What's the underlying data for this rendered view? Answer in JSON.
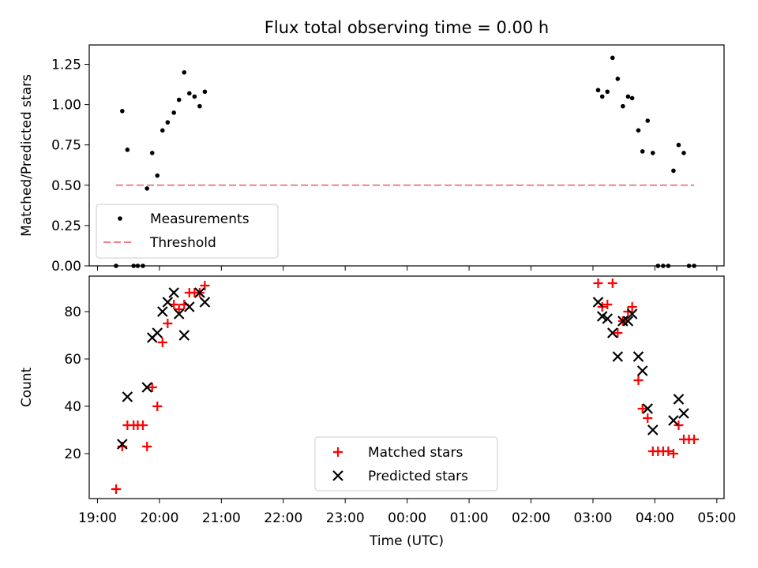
{
  "chart_data": [
    {
      "type": "scatter",
      "title": "Flux total observing time = 0.00 h",
      "ylabel": "Matched/Predicted stars",
      "ylim": [
        0,
        1.37
      ],
      "yticks": [
        0.0,
        0.25,
        0.5,
        0.75,
        1.0,
        1.25
      ],
      "ytick_labels": [
        "0.00",
        "0.25",
        "0.50",
        "0.75",
        "1.00",
        "1.25"
      ],
      "legend_position": "lower-left",
      "series": [
        {
          "name": "Measurements",
          "marker": "dot",
          "color": "#000000",
          "points": [
            [
              "19:18",
              0.0
            ],
            [
              "19:24",
              0.96
            ],
            [
              "19:29",
              0.72
            ],
            [
              "19:35",
              0.0
            ],
            [
              "19:39",
              0.0
            ],
            [
              "19:44",
              0.0
            ],
            [
              "19:48",
              0.48
            ],
            [
              "19:53",
              0.7
            ],
            [
              "19:58",
              0.56
            ],
            [
              "20:03",
              0.84
            ],
            [
              "20:08",
              0.89
            ],
            [
              "20:14",
              0.95
            ],
            [
              "20:19",
              1.03
            ],
            [
              "20:24",
              1.2
            ],
            [
              "20:29",
              1.07
            ],
            [
              "20:34",
              1.05
            ],
            [
              "20:39",
              0.99
            ],
            [
              "20:44",
              1.08
            ],
            [
              "03:05",
              1.09
            ],
            [
              "03:09",
              1.05
            ],
            [
              "03:14",
              1.08
            ],
            [
              "03:19",
              1.29
            ],
            [
              "03:24",
              1.16
            ],
            [
              "03:29",
              0.99
            ],
            [
              "03:34",
              1.05
            ],
            [
              "03:38",
              1.04
            ],
            [
              "03:44",
              0.84
            ],
            [
              "03:48",
              0.71
            ],
            [
              "03:53",
              0.9
            ],
            [
              "03:58",
              0.7
            ],
            [
              "04:03",
              0.0
            ],
            [
              "04:08",
              0.0
            ],
            [
              "04:13",
              0.0
            ],
            [
              "04:18",
              0.59
            ],
            [
              "04:23",
              0.75
            ],
            [
              "04:28",
              0.7
            ],
            [
              "04:33",
              0.0
            ],
            [
              "04:38",
              0.0
            ]
          ]
        },
        {
          "name": "Threshold",
          "marker": "dashed-line",
          "color": "#f08080",
          "points": [
            [
              "19:18",
              0.5
            ],
            [
              "04:38",
              0.5
            ]
          ]
        }
      ]
    },
    {
      "type": "scatter",
      "xlabel": "Time (UTC)",
      "ylabel": "Count",
      "ylim": [
        1,
        95
      ],
      "yticks": [
        20,
        40,
        60,
        80
      ],
      "xlim": [
        "18:52",
        "05:07"
      ],
      "xticks": [
        "19:00",
        "20:00",
        "21:00",
        "22:00",
        "23:00",
        "00:00",
        "01:00",
        "02:00",
        "03:00",
        "04:00",
        "05:00"
      ],
      "legend_position": "lower-center",
      "series": [
        {
          "name": "Matched stars",
          "marker": "plus",
          "color": "#ff0000",
          "points": [
            [
              "19:18",
              5
            ],
            [
              "19:24",
              23
            ],
            [
              "19:29",
              32
            ],
            [
              "19:35",
              32
            ],
            [
              "19:39",
              32
            ],
            [
              "19:44",
              32
            ],
            [
              "19:48",
              23
            ],
            [
              "19:53",
              48
            ],
            [
              "19:58",
              40
            ],
            [
              "20:03",
              67
            ],
            [
              "20:08",
              75
            ],
            [
              "20:14",
              83
            ],
            [
              "20:19",
              81
            ],
            [
              "20:24",
              83
            ],
            [
              "20:29",
              88
            ],
            [
              "20:34",
              88
            ],
            [
              "20:39",
              88
            ],
            [
              "20:44",
              91
            ],
            [
              "03:05",
              92
            ],
            [
              "03:09",
              82
            ],
            [
              "03:14",
              83
            ],
            [
              "03:19",
              92
            ],
            [
              "03:24",
              71
            ],
            [
              "03:29",
              76
            ],
            [
              "03:34",
              80
            ],
            [
              "03:38",
              82
            ],
            [
              "03:44",
              51
            ],
            [
              "03:48",
              39
            ],
            [
              "03:53",
              35
            ],
            [
              "03:58",
              21
            ],
            [
              "04:03",
              21
            ],
            [
              "04:08",
              21
            ],
            [
              "04:13",
              21
            ],
            [
              "04:18",
              20
            ],
            [
              "04:23",
              32
            ],
            [
              "04:28",
              26
            ],
            [
              "04:33",
              26
            ],
            [
              "04:38",
              26
            ]
          ]
        },
        {
          "name": "Predicted stars",
          "marker": "x",
          "color": "#000000",
          "points": [
            [
              "19:24",
              24
            ],
            [
              "19:29",
              44
            ],
            [
              "19:48",
              48
            ],
            [
              "19:53",
              69
            ],
            [
              "19:58",
              71
            ],
            [
              "20:03",
              80
            ],
            [
              "20:08",
              84
            ],
            [
              "20:14",
              88
            ],
            [
              "20:19",
              79
            ],
            [
              "20:24",
              70
            ],
            [
              "20:29",
              82
            ],
            [
              "20:39",
              88
            ],
            [
              "20:44",
              84
            ],
            [
              "03:05",
              84
            ],
            [
              "03:09",
              78
            ],
            [
              "03:14",
              77
            ],
            [
              "03:19",
              71
            ],
            [
              "03:24",
              61
            ],
            [
              "03:29",
              76
            ],
            [
              "03:34",
              76
            ],
            [
              "03:38",
              79
            ],
            [
              "03:44",
              61
            ],
            [
              "03:48",
              55
            ],
            [
              "03:53",
              39
            ],
            [
              "03:58",
              30
            ],
            [
              "04:18",
              34
            ],
            [
              "04:23",
              43
            ],
            [
              "04:28",
              37
            ]
          ]
        }
      ]
    }
  ]
}
